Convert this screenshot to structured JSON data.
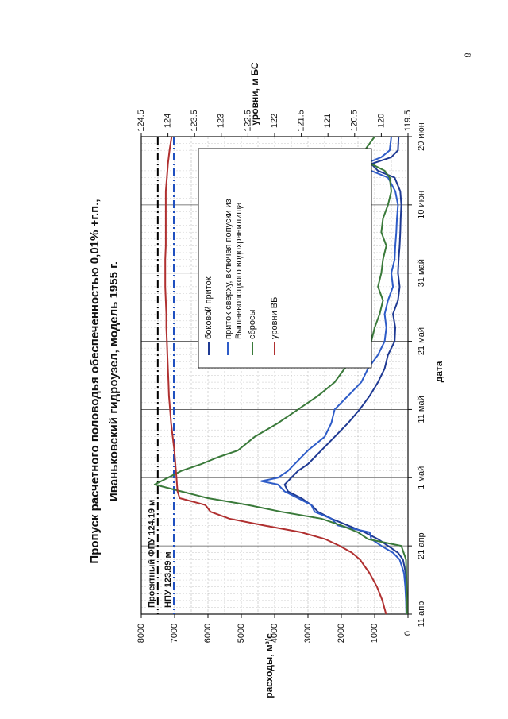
{
  "page": {
    "number": "8"
  },
  "chart_data": {
    "type": "line",
    "title": "Пропуск расчетного половодья обеспеченностью 0,01% +г.п.,",
    "subtitle": "Иваньковский гидроузел, модель 1955 г.",
    "xlabel": "дата",
    "ylabel": "расходы, м³/с",
    "y2label": "уровни, м БС",
    "x_ticks": [
      "11 апр",
      "21 апр",
      "1 май",
      "11 май",
      "21 май",
      "31 май",
      "10 июн",
      "20 июн"
    ],
    "xlim": [
      0,
      70
    ],
    "ylim": [
      0,
      8000
    ],
    "y_ticks": [
      "0",
      "1000",
      "2000",
      "3000",
      "4000",
      "5000",
      "6000",
      "7000",
      "8000"
    ],
    "y2lim": [
      119.5,
      124.5
    ],
    "y2_ticks": [
      "119.5",
      "120",
      "120.5",
      "121",
      "121.5",
      "122",
      "122.5",
      "123",
      "123.5",
      "124",
      "124.5"
    ],
    "grid": true,
    "legend_position": "center",
    "reference_lines": [
      {
        "label": "Проектный ФПУ 124.19 м",
        "level": 124.19,
        "color": "#000000",
        "style": "dash-dot"
      },
      {
        "label": "НПУ 123.89 м",
        "level": 123.89,
        "color": "#1f4fbf",
        "style": "dash-dot"
      }
    ],
    "series": [
      {
        "name": "боковой приток",
        "color": "#1f3a93",
        "axis": "left",
        "x": [
          0,
          2,
          4,
          6,
          8,
          9,
          10,
          11,
          12,
          13,
          14,
          15,
          16,
          17,
          18,
          19,
          20,
          21,
          22,
          23,
          24,
          26,
          28,
          30,
          32,
          34,
          36,
          38,
          40,
          42,
          44,
          46,
          48,
          50,
          52,
          54,
          56,
          58,
          60,
          62,
          64,
          65,
          66,
          67,
          68,
          70
        ],
        "y": [
          40,
          40,
          50,
          70,
          150,
          300,
          600,
          900,
          1300,
          1800,
          2300,
          2700,
          2900,
          3200,
          3600,
          3700,
          3500,
          3300,
          3000,
          2800,
          2600,
          2200,
          1800,
          1450,
          1150,
          900,
          700,
          600,
          400,
          380,
          450,
          300,
          250,
          300,
          280,
          250,
          230,
          220,
          200,
          230,
          400,
          900,
          1100,
          500,
          300,
          280
        ]
      },
      {
        "name": "приток сверху, включая попуски из Вышневолоцкого водохранилища",
        "color": "#2e5cc8",
        "axis": "left",
        "x": [
          0,
          2,
          4,
          6,
          8,
          9,
          10,
          11,
          12,
          13,
          14,
          15,
          16,
          17,
          18,
          19,
          19.5,
          20,
          21,
          22,
          23,
          24,
          26,
          28,
          30,
          32,
          34,
          36,
          38,
          40,
          42,
          44,
          46,
          48,
          50,
          52,
          54,
          56,
          58,
          60,
          62,
          64,
          65,
          66,
          67,
          68,
          70
        ],
        "y": [
          50,
          60,
          80,
          120,
          250,
          450,
          800,
          1100,
          1150,
          2100,
          2300,
          2800,
          2900,
          3300,
          3700,
          3900,
          4400,
          3900,
          3600,
          3400,
          3200,
          3000,
          2500,
          2300,
          2200,
          1800,
          1400,
          1200,
          900,
          700,
          650,
          700,
          600,
          450,
          500,
          400,
          380,
          350,
          330,
          300,
          380,
          600,
          1100,
          1300,
          800,
          550,
          500
        ]
      },
      {
        "name": "сбросы",
        "color": "#3a7a3a",
        "axis": "left",
        "x": [
          0,
          2,
          4,
          6,
          8,
          10,
          11,
          12,
          13,
          14,
          15,
          16,
          17,
          18,
          19,
          20,
          21,
          22,
          23,
          24,
          26,
          28,
          30,
          32,
          34,
          36,
          38,
          40,
          42,
          44,
          46,
          48,
          50,
          52,
          54,
          56,
          58,
          60,
          62,
          64,
          65,
          66,
          67,
          68,
          70
        ],
        "y": [
          30,
          30,
          40,
          50,
          60,
          200,
          1200,
          1500,
          2000,
          2600,
          3800,
          4800,
          6000,
          6800,
          7600,
          7200,
          6800,
          6200,
          5700,
          5100,
          4600,
          3900,
          3300,
          2700,
          2200,
          1900,
          1500,
          1100,
          1000,
          850,
          750,
          900,
          800,
          750,
          650,
          800,
          750,
          600,
          500,
          550,
          700,
          1100,
          1400,
          1300,
          1000
        ]
      },
      {
        "name": "уровни ВБ",
        "color": "#b03030",
        "axis": "right",
        "x": [
          0,
          2,
          4,
          6,
          8,
          9,
          10,
          11,
          12,
          13,
          14,
          15,
          16,
          17,
          18,
          19,
          20,
          22,
          24,
          26,
          28,
          30,
          32,
          34,
          36,
          38,
          40,
          42,
          44,
          46,
          48,
          50,
          52,
          54,
          56,
          58,
          60,
          62,
          64,
          66,
          68,
          70
        ],
        "y": [
          119.91,
          119.98,
          120.08,
          120.22,
          120.4,
          120.55,
          120.78,
          121.05,
          121.5,
          122.2,
          122.85,
          123.2,
          123.3,
          123.78,
          123.82,
          123.83,
          123.84,
          123.86,
          123.88,
          123.91,
          123.94,
          123.96,
          123.98,
          123.99,
          124.0,
          124.01,
          124.02,
          124.03,
          124.03,
          124.04,
          124.05,
          124.05,
          124.05,
          124.04,
          124.04,
          124.04,
          124.04,
          124.04,
          124.02,
          124.0,
          123.97,
          123.93
        ]
      }
    ]
  }
}
